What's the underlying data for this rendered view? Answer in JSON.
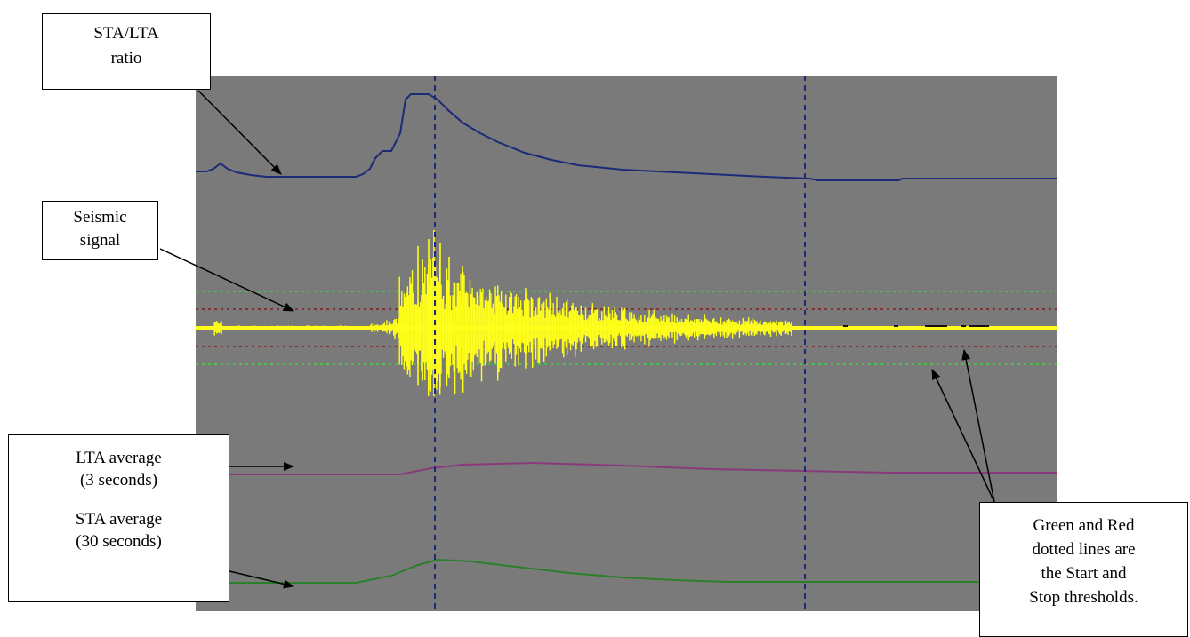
{
  "callouts": {
    "sta_lta_ratio": [
      "STA/LTA",
      "ratio"
    ],
    "seismic_signal": [
      "Seismic",
      "signal"
    ],
    "lta_average": [
      "LTA average",
      "(3 seconds)"
    ],
    "sta_average": [
      "STA average",
      "(30 seconds)"
    ],
    "thresholds": [
      "Green and Red",
      "dotted lines are",
      "the Start and",
      "Stop thresholds."
    ]
  },
  "colors": {
    "plot_background": "#7a7a7a",
    "ratio_trace": "#1c2a78",
    "seismic_trace": "#ffff1a",
    "lta_trace": "#8a3a7c",
    "sta_trace": "#2a7f2a",
    "start_threshold": "#3dd63d",
    "stop_threshold": "#8b1a1a",
    "marker_lines": "#1c2a78"
  },
  "markers": {
    "event_onset": "dashed vertical marker",
    "event_end": "dashed vertical marker"
  }
}
